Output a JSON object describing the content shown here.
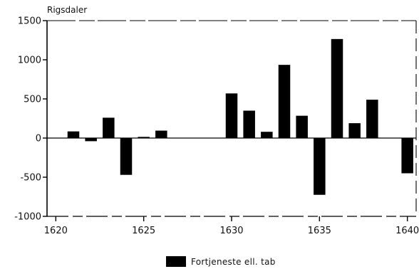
{
  "chart_data": {
    "type": "bar",
    "ylabel": "Rigsdaler",
    "xlabel": "",
    "title": "",
    "ylim": [
      -1000,
      1500
    ],
    "xlim": [
      1619.5,
      1640.5
    ],
    "yticks": [
      -1000,
      -500,
      0,
      500,
      1000,
      1500
    ],
    "xticks": [
      1620,
      1625,
      1630,
      1635,
      1640
    ],
    "grid": false,
    "legend_position": "bottom-center",
    "bar_color": "#000000",
    "series": [
      {
        "name": "Fortjeneste ell. tab",
        "x": [
          1621,
          1622,
          1623,
          1624,
          1625,
          1626,
          1627,
          1628,
          1629,
          1630,
          1631,
          1632,
          1633,
          1634,
          1635,
          1636,
          1637,
          1638,
          1639,
          1640
        ],
        "values": [
          85,
          -40,
          260,
          -470,
          15,
          95,
          0,
          0,
          0,
          570,
          350,
          80,
          935,
          285,
          -725,
          1265,
          190,
          490,
          0,
          -450
        ]
      }
    ]
  }
}
